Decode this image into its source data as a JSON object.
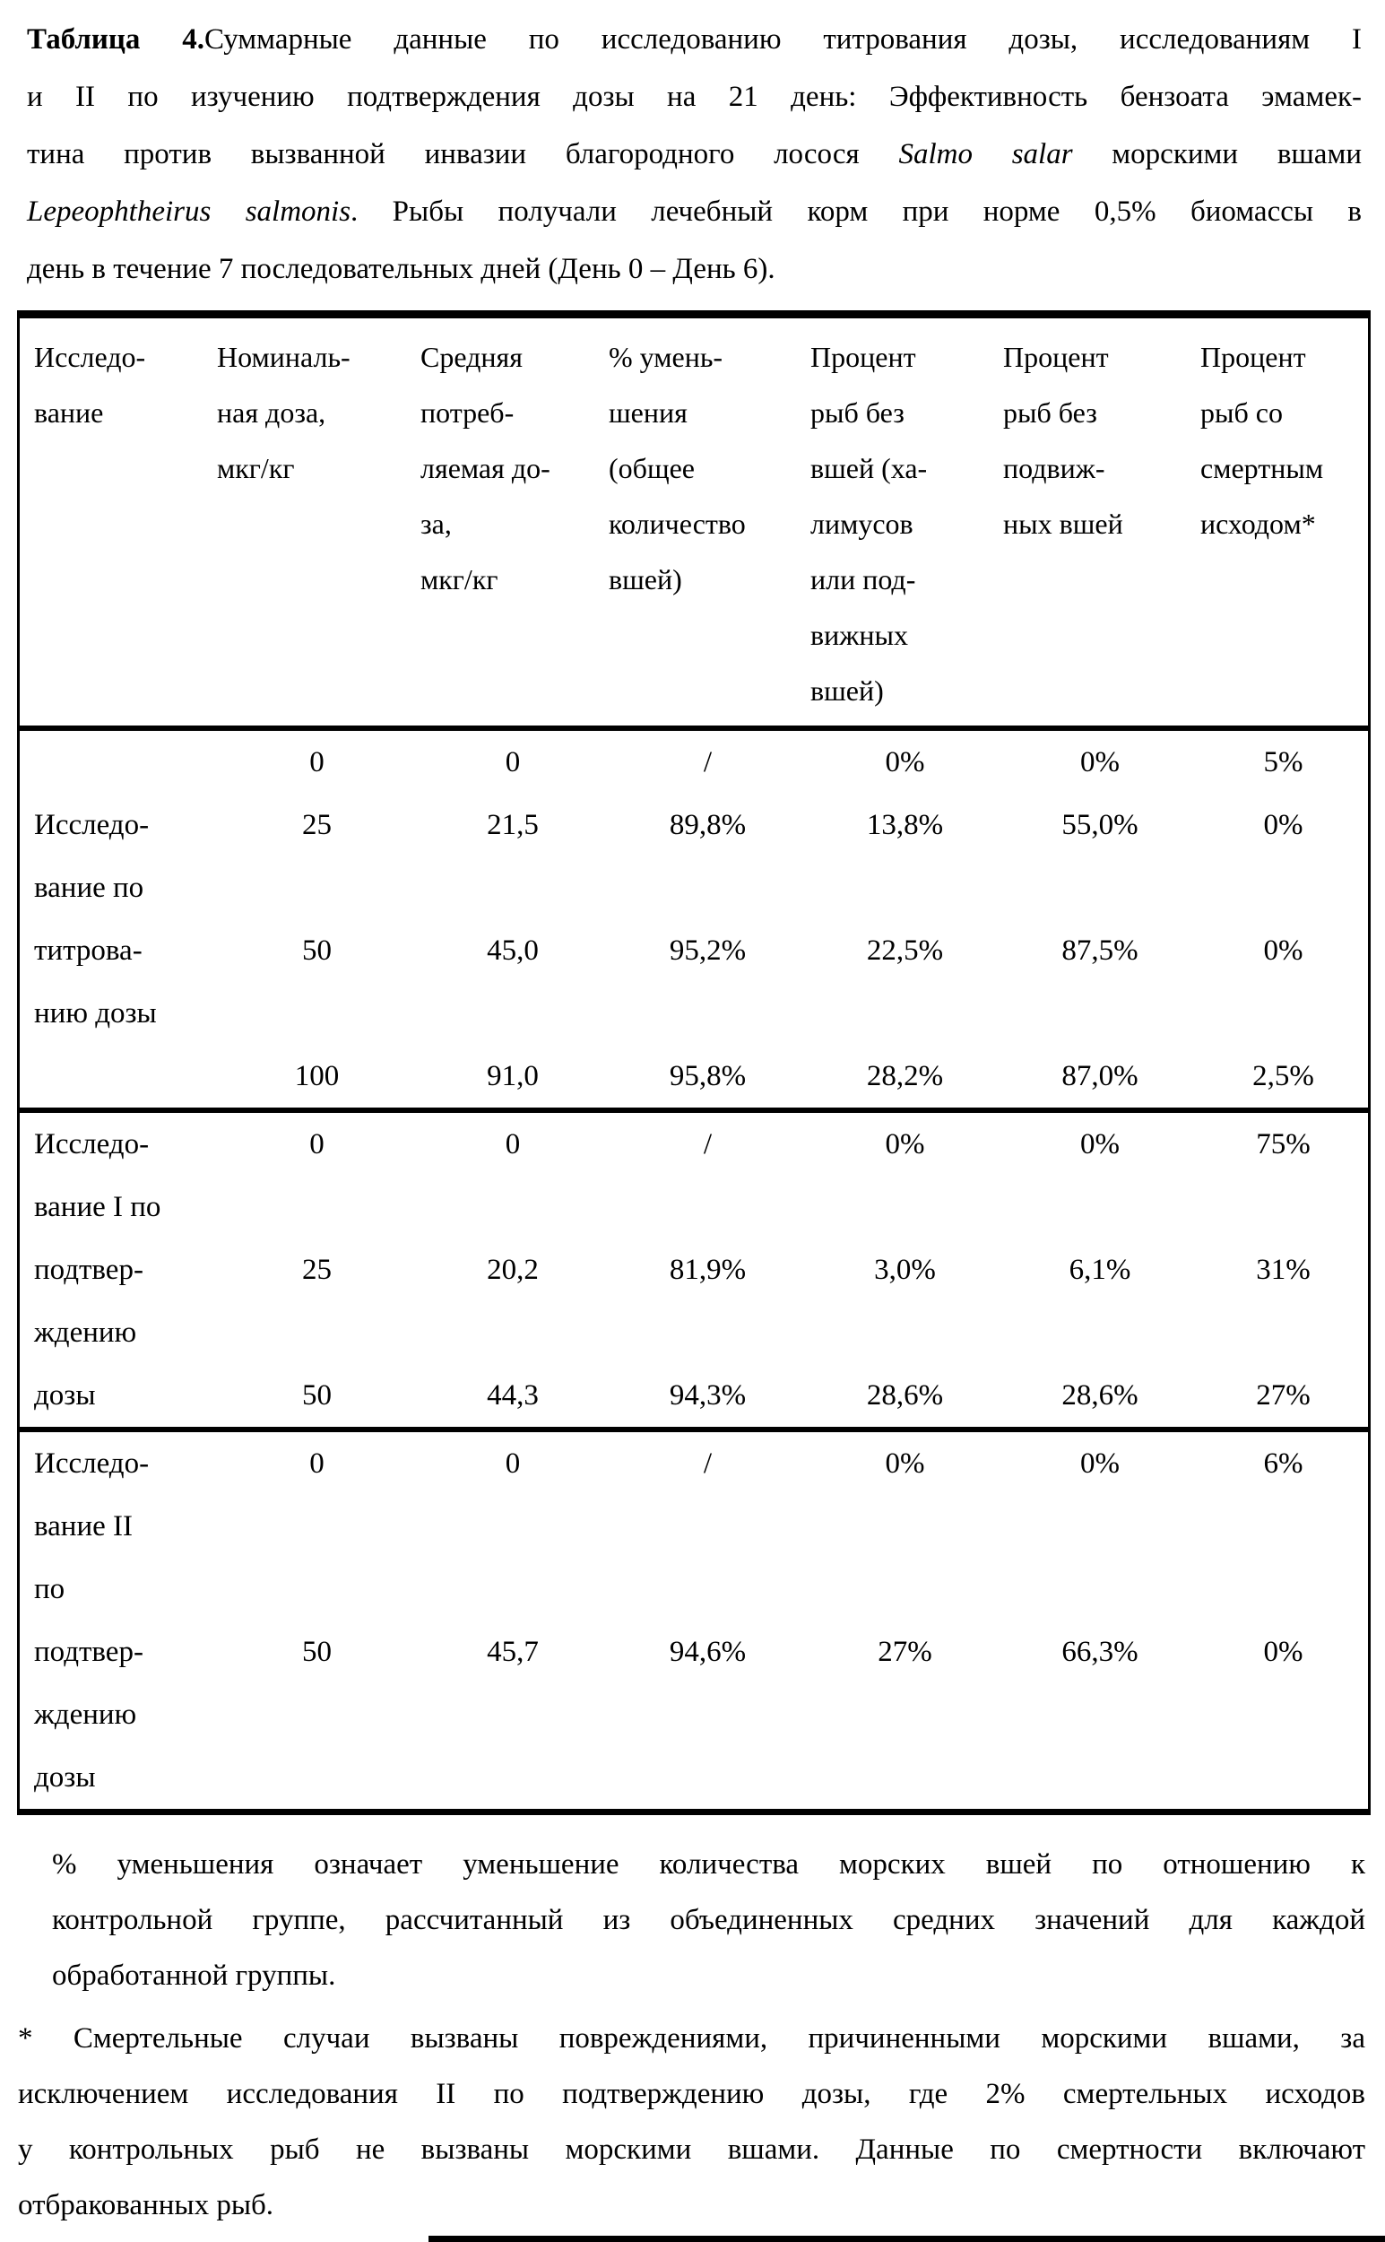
{
  "title": {
    "lines": [
      {
        "just": true,
        "parts": [
          {
            "t": "Таблица 4.",
            "s": "b"
          },
          {
            "t": "Суммарные данные по исследованию титрования дозы, исследованиям I",
            "s": ""
          }
        ]
      },
      {
        "just": true,
        "parts": [
          {
            "t": "и II по изучению подтверждения дозы на 21 день: Эффективность бензоата эмамек-",
            "s": ""
          }
        ]
      },
      {
        "just": true,
        "parts": [
          {
            "t": "тина против вызванной инвазии благородного лосося ",
            "s": ""
          },
          {
            "t": "Salmo salar",
            "s": "i"
          },
          {
            "t": " морскими вшами",
            "s": ""
          }
        ]
      },
      {
        "just": true,
        "parts": [
          {
            "t": "Lepeophtheirus salmonis",
            "s": "i"
          },
          {
            "t": ". Рыбы получали лечебный корм при норме 0,5% биомассы в",
            "s": ""
          }
        ]
      },
      {
        "just": false,
        "parts": [
          {
            "t": "день в течение 7 последовательных дней (День 0 – День 6).",
            "s": ""
          }
        ]
      }
    ]
  },
  "table": {
    "header": [
      {
        "lines": [
          "Исследо-",
          "вание"
        ]
      },
      {
        "lines": [
          "Номиналь-",
          "ная доза,",
          "мкг/кг"
        ]
      },
      {
        "lines": [
          "Средняя",
          "потреб-",
          "ляемая до-",
          "за,",
          "мкг/кг"
        ]
      },
      {
        "lines": [
          "% умень-",
          "шения",
          "(общее",
          "количество",
          "вшей)"
        ]
      },
      {
        "lines": [
          "Процент",
          "рыб без",
          "вшей (ха-",
          "лимусов",
          "или под-",
          "вижных",
          "вшей)"
        ]
      },
      {
        "lines": [
          "Процент",
          "рыб без",
          "подвиж-",
          "ных вшей"
        ]
      },
      {
        "lines": [
          "Процент",
          "рыб со",
          "смертным",
          "исходом*"
        ]
      }
    ],
    "groups": [
      {
        "study": "Исследование по титрованию дозы",
        "rows": [
          {
            "label": "",
            "cells": [
              "0",
              "0",
              "/",
              "0%",
              "0%",
              "5%"
            ]
          },
          {
            "label": "Исследо-",
            "cells": [
              "25",
              "21,5",
              "89,8%",
              "13,8%",
              "55,0%",
              "0%"
            ]
          },
          {
            "label": "вание по",
            "cells": null
          },
          {
            "label": "титрова-",
            "cells": [
              "50",
              "45,0",
              "95,2%",
              "22,5%",
              "87,5%",
              "0%"
            ]
          },
          {
            "label": "нию дозы",
            "cells": null
          },
          {
            "label": "",
            "cells": [
              "100",
              "91,0",
              "95,8%",
              "28,2%",
              "87,0%",
              "2,5%"
            ]
          }
        ]
      },
      {
        "study": "Исследование I по подтверждению дозы",
        "rows": [
          {
            "label": "Исследо-",
            "cells": [
              "0",
              "0",
              "/",
              "0%",
              "0%",
              "75%"
            ]
          },
          {
            "label": "вание I по",
            "cells": null
          },
          {
            "label": "подтвер-",
            "cells": [
              "25",
              "20,2",
              "81,9%",
              "3,0%",
              "6,1%",
              "31%"
            ]
          },
          {
            "label": "ждению",
            "cells": null
          },
          {
            "label": "дозы",
            "cells": [
              "50",
              "44,3",
              "94,3%",
              "28,6%",
              "28,6%",
              "27%"
            ]
          }
        ]
      },
      {
        "study": "Исследование II по подтверждению дозы",
        "rows": [
          {
            "label": "Исследо-",
            "cells": [
              "0",
              "0",
              "/",
              "0%",
              "0%",
              "6%"
            ]
          },
          {
            "label": "вание II",
            "cells": null
          },
          {
            "label": "по",
            "cells": null
          },
          {
            "label": "подтвер-",
            "cells": [
              "50",
              "45,7",
              "94,6%",
              "27%",
              "66,3%",
              "0%"
            ]
          },
          {
            "label": "ждению",
            "cells": null
          },
          {
            "label": "дозы",
            "cells": null
          }
        ]
      }
    ]
  },
  "footnotes": [
    {
      "indent": true,
      "lines": [
        "% уменьшения означает уменьшение количества морских вшей по отношению к",
        "контрольной группе, рассчитанный из объединенных средних значений для каждой",
        "обработанной группы."
      ]
    },
    {
      "indent": false,
      "lines": [
        "* Смертельные случаи вызваны повреждениями, причиненными морскими вшами, за",
        "исключением исследования II по подтверждению дозы, где 2% смертельных исходов",
        "у контрольных рыб не вызваны морскими вшами. Данные по смертности включают",
        "отбракованных рыб."
      ]
    }
  ]
}
